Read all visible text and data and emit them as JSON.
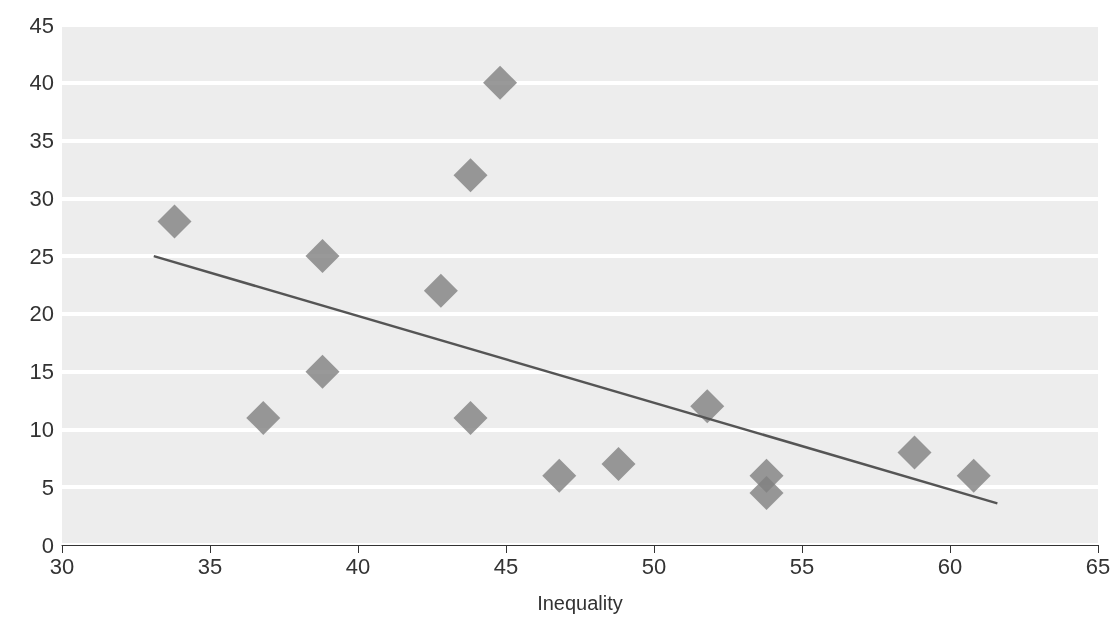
{
  "chart_data": {
    "type": "scatter",
    "xlabel": "Inequality",
    "xlim": [
      30,
      65
    ],
    "xticks": [
      30,
      35,
      40,
      45,
      50,
      55,
      60,
      65
    ],
    "ylim": [
      0,
      45
    ],
    "yticks": [
      0,
      5,
      10,
      15,
      20,
      25,
      30,
      35,
      40,
      45
    ],
    "grid": "y",
    "series": [
      {
        "color": "#7f7f7f",
        "marker": "diamond",
        "x": [
          33.8,
          36.8,
          38.8,
          38.8,
          42.8,
          43.8,
          43.8,
          44.8,
          46.8,
          48.8,
          51.8,
          53.8,
          53.8,
          58.8,
          60.8
        ],
        "values": [
          28,
          11,
          25,
          15,
          22,
          32,
          11,
          40,
          6,
          7,
          12,
          6,
          4.5,
          8,
          6
        ]
      },
      {
        "type": "line",
        "color": "#555555",
        "marker": "none",
        "x": [
          33.1,
          61.6
        ],
        "values": [
          25,
          3.6
        ]
      }
    ]
  }
}
